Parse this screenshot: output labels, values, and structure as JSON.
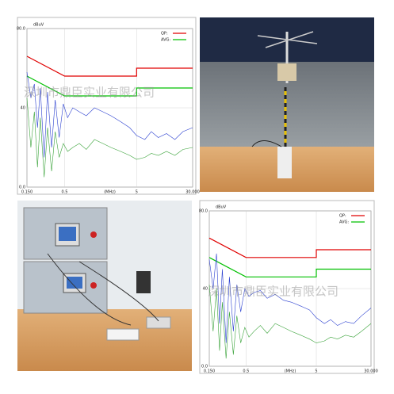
{
  "watermark": "深圳市鼎臣实业有限公司",
  "chart_data": [
    {
      "type": "line",
      "xscale": "log",
      "ylabel": "dBuV",
      "xlabel": "(MHz)",
      "grid": true,
      "xlim": [
        0.15,
        30
      ],
      "ylim": [
        0,
        80
      ],
      "xticks": [
        {
          "value": 0.15,
          "label": "0.150"
        },
        0.5,
        5,
        {
          "value": 30,
          "label": "30.000"
        }
      ],
      "yticks": [
        {
          "value": 80,
          "label": "80.0"
        },
        40,
        {
          "value": 0,
          "label": "0.0"
        }
      ],
      "series": [
        {
          "name": "QP:",
          "color": "#e00000",
          "x": [
            0.15,
            0.5,
            5,
            5,
            30
          ],
          "values": [
            66,
            56,
            56,
            60,
            60
          ]
        },
        {
          "name": "AVG:",
          "color": "#00c000",
          "x": [
            0.15,
            0.5,
            5,
            5,
            30
          ],
          "values": [
            56,
            46,
            46,
            50,
            50
          ]
        },
        {
          "color": "#2a3fd0",
          "x": [
            0.15,
            0.17,
            0.19,
            0.21,
            0.23,
            0.26,
            0.29,
            0.33,
            0.37,
            0.42,
            0.48,
            0.55,
            0.65,
            0.8,
            1,
            1.3,
            1.7,
            2.2,
            3,
            4,
            5,
            6.5,
            8,
            10,
            13,
            17,
            22,
            30
          ],
          "values": [
            58,
            45,
            52,
            30,
            50,
            15,
            48,
            20,
            44,
            25,
            42,
            35,
            40,
            38,
            36,
            40,
            38,
            36,
            33,
            30,
            26,
            24,
            28,
            25,
            27,
            24,
            28,
            30
          ]
        },
        {
          "color": "#3aa33a",
          "x": [
            0.15,
            0.17,
            0.19,
            0.21,
            0.23,
            0.26,
            0.29,
            0.33,
            0.37,
            0.42,
            0.48,
            0.55,
            0.65,
            0.8,
            1,
            1.3,
            1.7,
            2.2,
            3,
            4,
            5,
            6.5,
            8,
            10,
            13,
            17,
            22,
            30
          ],
          "values": [
            45,
            20,
            38,
            10,
            35,
            5,
            30,
            8,
            28,
            15,
            22,
            18,
            20,
            22,
            19,
            24,
            22,
            20,
            18,
            16,
            14,
            15,
            17,
            16,
            18,
            16,
            19,
            20
          ]
        }
      ]
    },
    {
      "type": "line",
      "xscale": "log",
      "ylabel": "dBuV",
      "xlabel": "(MHz)",
      "grid": true,
      "xlim": [
        0.15,
        30
      ],
      "ylim": [
        0,
        80
      ],
      "xticks": [
        {
          "value": 0.15,
          "label": "0.150"
        },
        0.5,
        5,
        {
          "value": 30,
          "label": "30.000"
        }
      ],
      "yticks": [
        {
          "value": 80,
          "label": "80.0"
        },
        40,
        {
          "value": 0,
          "label": "0.0"
        }
      ],
      "series": [
        {
          "name": "QP:",
          "color": "#e00000",
          "x": [
            0.15,
            0.5,
            5,
            5,
            30
          ],
          "values": [
            66,
            56,
            56,
            60,
            60
          ]
        },
        {
          "name": "AVG:",
          "color": "#00c000",
          "x": [
            0.15,
            0.5,
            5,
            5,
            30
          ],
          "values": [
            56,
            46,
            46,
            50,
            50
          ]
        },
        {
          "color": "#2a3fd0",
          "x": [
            0.15,
            0.17,
            0.19,
            0.21,
            0.23,
            0.26,
            0.29,
            0.33,
            0.37,
            0.42,
            0.48,
            0.55,
            0.65,
            0.8,
            1,
            1.3,
            1.7,
            2.2,
            3,
            4,
            5,
            6.5,
            8,
            10,
            13,
            17,
            22,
            30
          ],
          "values": [
            55,
            40,
            58,
            22,
            50,
            12,
            46,
            18,
            42,
            28,
            40,
            36,
            38,
            39,
            35,
            37,
            34,
            33,
            31,
            29,
            25,
            22,
            24,
            21,
            23,
            22,
            26,
            30
          ]
        },
        {
          "color": "#3aa33a",
          "x": [
            0.15,
            0.17,
            0.19,
            0.21,
            0.23,
            0.26,
            0.29,
            0.33,
            0.37,
            0.42,
            0.48,
            0.55,
            0.65,
            0.8,
            1,
            1.3,
            1.7,
            2.2,
            3,
            4,
            5,
            6.5,
            8,
            10,
            13,
            17,
            22,
            30
          ],
          "values": [
            42,
            18,
            40,
            8,
            33,
            4,
            28,
            6,
            26,
            12,
            20,
            15,
            18,
            21,
            17,
            22,
            20,
            18,
            16,
            14,
            12,
            13,
            15,
            14,
            16,
            15,
            18,
            22
          ]
        }
      ]
    }
  ]
}
